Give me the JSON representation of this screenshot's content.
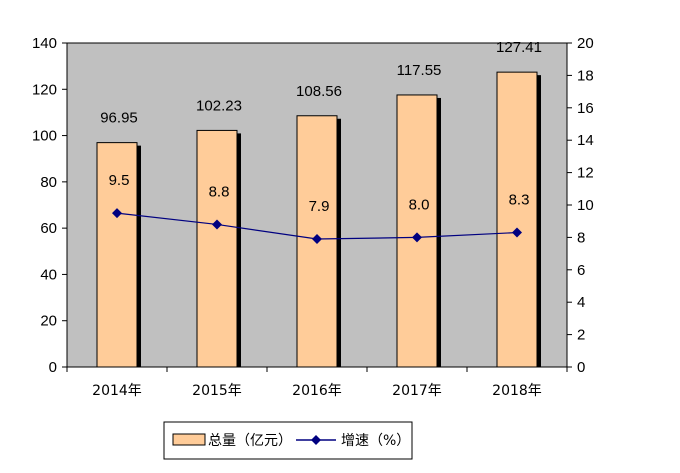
{
  "chart_data": {
    "type": "bar",
    "categories": [
      "2014年",
      "2015年",
      "2016年",
      "2017年",
      "2018年"
    ],
    "series": [
      {
        "name": "总量（亿元）",
        "type": "bar",
        "axis": "left",
        "values": [
          96.95,
          102.23,
          108.56,
          117.55,
          127.41
        ],
        "labels": [
          "96.95",
          "102.23",
          "108.56",
          "117.55",
          "127.41"
        ]
      },
      {
        "name": "增速（%）",
        "type": "line",
        "axis": "right",
        "values": [
          9.5,
          8.8,
          7.9,
          8.0,
          8.3
        ],
        "labels": [
          "9.5",
          "8.8",
          "7.9",
          "8.0",
          "8.3"
        ]
      }
    ],
    "y_left": {
      "min": 0,
      "max": 140,
      "step": 20,
      "ticks": [
        "0",
        "20",
        "40",
        "60",
        "80",
        "100",
        "120",
        "140"
      ]
    },
    "y_right": {
      "min": 0,
      "max": 20,
      "step": 2,
      "ticks": [
        "0",
        "2",
        "4",
        "6",
        "8",
        "10",
        "12",
        "14",
        "16",
        "18",
        "20"
      ]
    },
    "grid": false,
    "legend_position": "bottom",
    "colors": {
      "plot_background": "#C0C0C0",
      "bar_fill": "#FFCC99",
      "bar_stroke": "#000000",
      "bar_shadow": "#000000",
      "line": "#000080",
      "marker": "#000080"
    }
  }
}
